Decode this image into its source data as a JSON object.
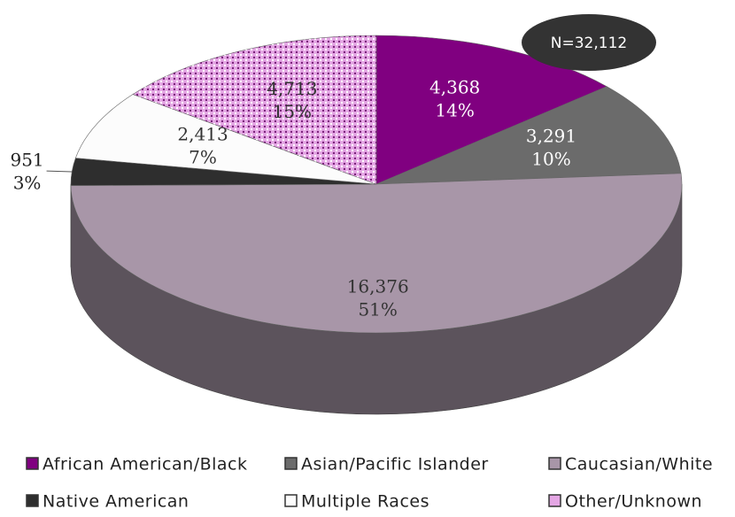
{
  "chart_data": {
    "type": "pie",
    "annotation": "N=32,112",
    "categories": [
      "African American/Black",
      "Asian/Pacific Islander",
      "Caucasian/White",
      "Native American",
      "Multiple Races",
      "Other/Unknown"
    ],
    "values": [
      4368,
      3291,
      16376,
      951,
      2413,
      4713
    ],
    "value_labels": [
      "4,368",
      "3,291",
      "16,376",
      "951",
      "2,413",
      "4,713"
    ],
    "percents": [
      14,
      10,
      51,
      3,
      7,
      15
    ],
    "percent_labels": [
      "14%",
      "10%",
      "51%",
      "3%",
      "7%",
      "15%"
    ],
    "colors": [
      "#800080",
      "#6b6b6b",
      "#a896a8",
      "#2e2e2e",
      "#fcfcfc",
      "#e4a6e4"
    ]
  }
}
